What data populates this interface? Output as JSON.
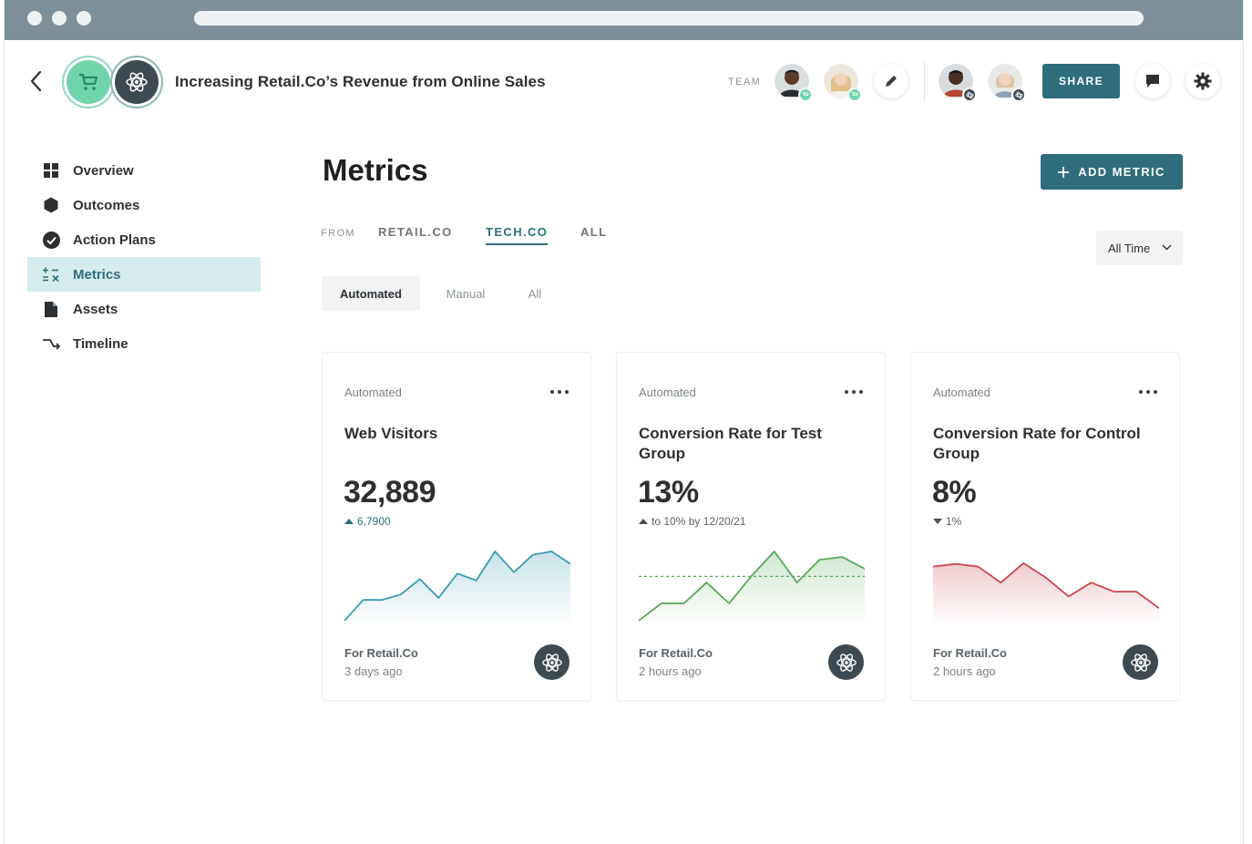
{
  "project": {
    "title": "Increasing Retail.Co’s Revenue from Online Sales",
    "icons": [
      "cart-icon",
      "atom-icon"
    ]
  },
  "header": {
    "team_label": "TEAM",
    "share_label": "SHARE",
    "colors": {
      "accent": "#2e6e7c",
      "cart_green": "#6fd4a9",
      "atom_dark": "#3e4a51"
    }
  },
  "sidebar": {
    "items": [
      {
        "label": "Overview",
        "icon": "grid-icon",
        "active": false
      },
      {
        "label": "Outcomes",
        "icon": "hexagon-icon",
        "active": false
      },
      {
        "label": "Action Plans",
        "icon": "check-circle-icon",
        "active": false
      },
      {
        "label": "Metrics",
        "icon": "metrics-icon",
        "active": true
      },
      {
        "label": "Assets",
        "icon": "document-icon",
        "active": false
      },
      {
        "label": "Timeline",
        "icon": "timeline-icon",
        "active": false
      }
    ]
  },
  "main": {
    "title": "Metrics",
    "add_metric_label": "ADD METRIC",
    "from_label": "FROM",
    "source_tabs": [
      {
        "label": "RETAIL.CO",
        "active": false
      },
      {
        "label": "TECH.CO",
        "active": true
      },
      {
        "label": "ALL",
        "active": false
      }
    ],
    "time_filter": "All Time",
    "type_tabs": [
      {
        "label": "Automated",
        "active": true
      },
      {
        "label": "Manual",
        "active": false
      },
      {
        "label": "All",
        "active": false
      }
    ],
    "cards": [
      {
        "kind": "Automated",
        "name": "Web Visitors",
        "value": "32,889",
        "delta": "6,7900",
        "direction": "up",
        "color": "#3a9bb0",
        "for": "For Retail.Co",
        "ago": "3 days ago",
        "spark": [
          0.0,
          0.3,
          0.3,
          0.38,
          0.6,
          0.33,
          0.68,
          0.58,
          1.0,
          0.7,
          0.95,
          1.0,
          0.82
        ]
      },
      {
        "kind": "Automated",
        "name": "Conversion Rate for Test Group",
        "value": "13%",
        "delta": "to 10% by 12/20/21",
        "direction": "up",
        "color": "#5aa85a",
        "for": "For Retail.Co",
        "ago": "2 hours ago",
        "spark": [
          0.0,
          0.25,
          0.25,
          0.55,
          0.25,
          0.65,
          1.0,
          0.55,
          0.88,
          0.92,
          0.75
        ],
        "target_line": 0.64
      },
      {
        "kind": "Automated",
        "name": "Conversion Rate for Control Group",
        "value": "8%",
        "delta": "1%",
        "direction": "down",
        "color": "#c9474f",
        "for": "For Retail.Co",
        "ago": "2 hours ago",
        "spark": [
          0.78,
          0.82,
          0.78,
          0.55,
          0.83,
          0.62,
          0.35,
          0.55,
          0.42,
          0.42,
          0.18
        ]
      }
    ]
  }
}
